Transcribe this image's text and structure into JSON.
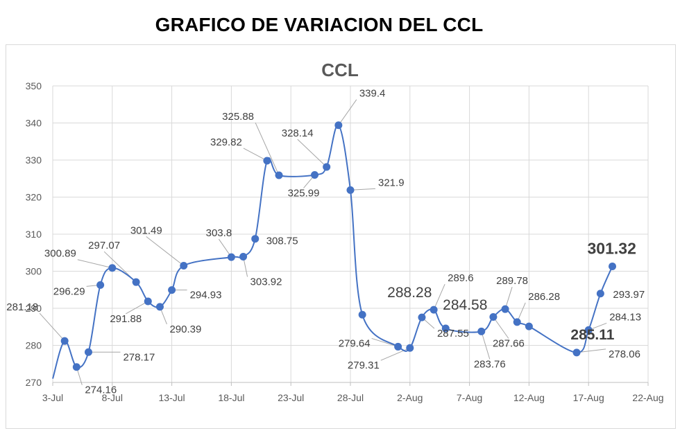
{
  "page_title": "GRAFICO DE VARIACION DEL CCL",
  "chart_data": {
    "type": "line",
    "title": "CCL",
    "xlabel": "",
    "ylabel": "",
    "ylim": [
      270,
      350
    ],
    "yticks": [
      270,
      280,
      290,
      300,
      310,
      320,
      330,
      340,
      350
    ],
    "xlim": [
      "2021-07-03",
      "2021-08-22"
    ],
    "xticks": [
      {
        "date": "2021-07-03",
        "label": "3-Jul"
      },
      {
        "date": "2021-07-08",
        "label": "8-Jul"
      },
      {
        "date": "2021-07-13",
        "label": "13-Jul"
      },
      {
        "date": "2021-07-18",
        "label": "18-Jul"
      },
      {
        "date": "2021-07-23",
        "label": "23-Jul"
      },
      {
        "date": "2021-07-28",
        "label": "28-Jul"
      },
      {
        "date": "2021-08-02",
        "label": "2-Aug"
      },
      {
        "date": "2021-08-07",
        "label": "7-Aug"
      },
      {
        "date": "2021-08-12",
        "label": "12-Aug"
      },
      {
        "date": "2021-08-17",
        "label": "17-Aug"
      },
      {
        "date": "2021-08-22",
        "label": "22-Aug"
      }
    ],
    "grid": true,
    "line_color": "#4472C4",
    "series": [
      {
        "points": [
          {
            "x": "2021-07-03",
            "y": 271.0
          },
          {
            "x": "2021-07-04",
            "y": 281.18,
            "label": "281.18"
          },
          {
            "x": "2021-07-05",
            "y": 274.16,
            "label": "274.16"
          },
          {
            "x": "2021-07-06",
            "y": 278.17,
            "label": "278.17"
          },
          {
            "x": "2021-07-07",
            "y": 296.29,
            "label": "296.29"
          },
          {
            "x": "2021-07-08",
            "y": 300.89,
            "label": "300.89"
          },
          {
            "x": "2021-07-10",
            "y": 297.07,
            "label": "297.07"
          },
          {
            "x": "2021-07-11",
            "y": 291.88,
            "label": "291.88"
          },
          {
            "x": "2021-07-12",
            "y": 290.39,
            "label": "290.39"
          },
          {
            "x": "2021-07-13",
            "y": 294.93,
            "label": "294.93"
          },
          {
            "x": "2021-07-14",
            "y": 301.49,
            "label": "301.49"
          },
          {
            "x": "2021-07-18",
            "y": 303.8,
            "label": "303.8"
          },
          {
            "x": "2021-07-19",
            "y": 303.92,
            "label": "303.92"
          },
          {
            "x": "2021-07-20",
            "y": 308.75,
            "label": "308.75"
          },
          {
            "x": "2021-07-21",
            "y": 329.82,
            "label": "329.82"
          },
          {
            "x": "2021-07-22",
            "y": 325.88,
            "label": "325.88"
          },
          {
            "x": "2021-07-25",
            "y": 325.99,
            "label": "325.99"
          },
          {
            "x": "2021-07-26",
            "y": 328.14,
            "label": "328.14"
          },
          {
            "x": "2021-07-27",
            "y": 339.4,
            "label": "339.4"
          },
          {
            "x": "2021-07-28",
            "y": 321.9,
            "label": "321.9"
          },
          {
            "x": "2021-07-29",
            "y": 288.28,
            "label": "288.28"
          },
          {
            "x": "2021-08-01",
            "y": 279.64,
            "label": "279.64"
          },
          {
            "x": "2021-08-02",
            "y": 279.31,
            "label": "279.31"
          },
          {
            "x": "2021-08-03",
            "y": 287.55,
            "label": "287.55"
          },
          {
            "x": "2021-08-04",
            "y": 289.6,
            "label": "289.6"
          },
          {
            "x": "2021-08-05",
            "y": 284.58,
            "label": "284.58"
          },
          {
            "x": "2021-08-08",
            "y": 283.76,
            "label": "283.76"
          },
          {
            "x": "2021-08-09",
            "y": 287.66,
            "label": "287.66"
          },
          {
            "x": "2021-08-10",
            "y": 289.78,
            "label": "289.78"
          },
          {
            "x": "2021-08-11",
            "y": 286.28,
            "label": "286.28"
          },
          {
            "x": "2021-08-12",
            "y": 285.11,
            "label": "285.11"
          },
          {
            "x": "2021-08-16",
            "y": 278.06,
            "label": "278.06"
          },
          {
            "x": "2021-08-17",
            "y": 284.13,
            "label": "284.13"
          },
          {
            "x": "2021-08-18",
            "y": 293.97,
            "label": "293.97"
          },
          {
            "x": "2021-08-19",
            "y": 301.32,
            "label": "301.32"
          }
        ]
      }
    ]
  }
}
